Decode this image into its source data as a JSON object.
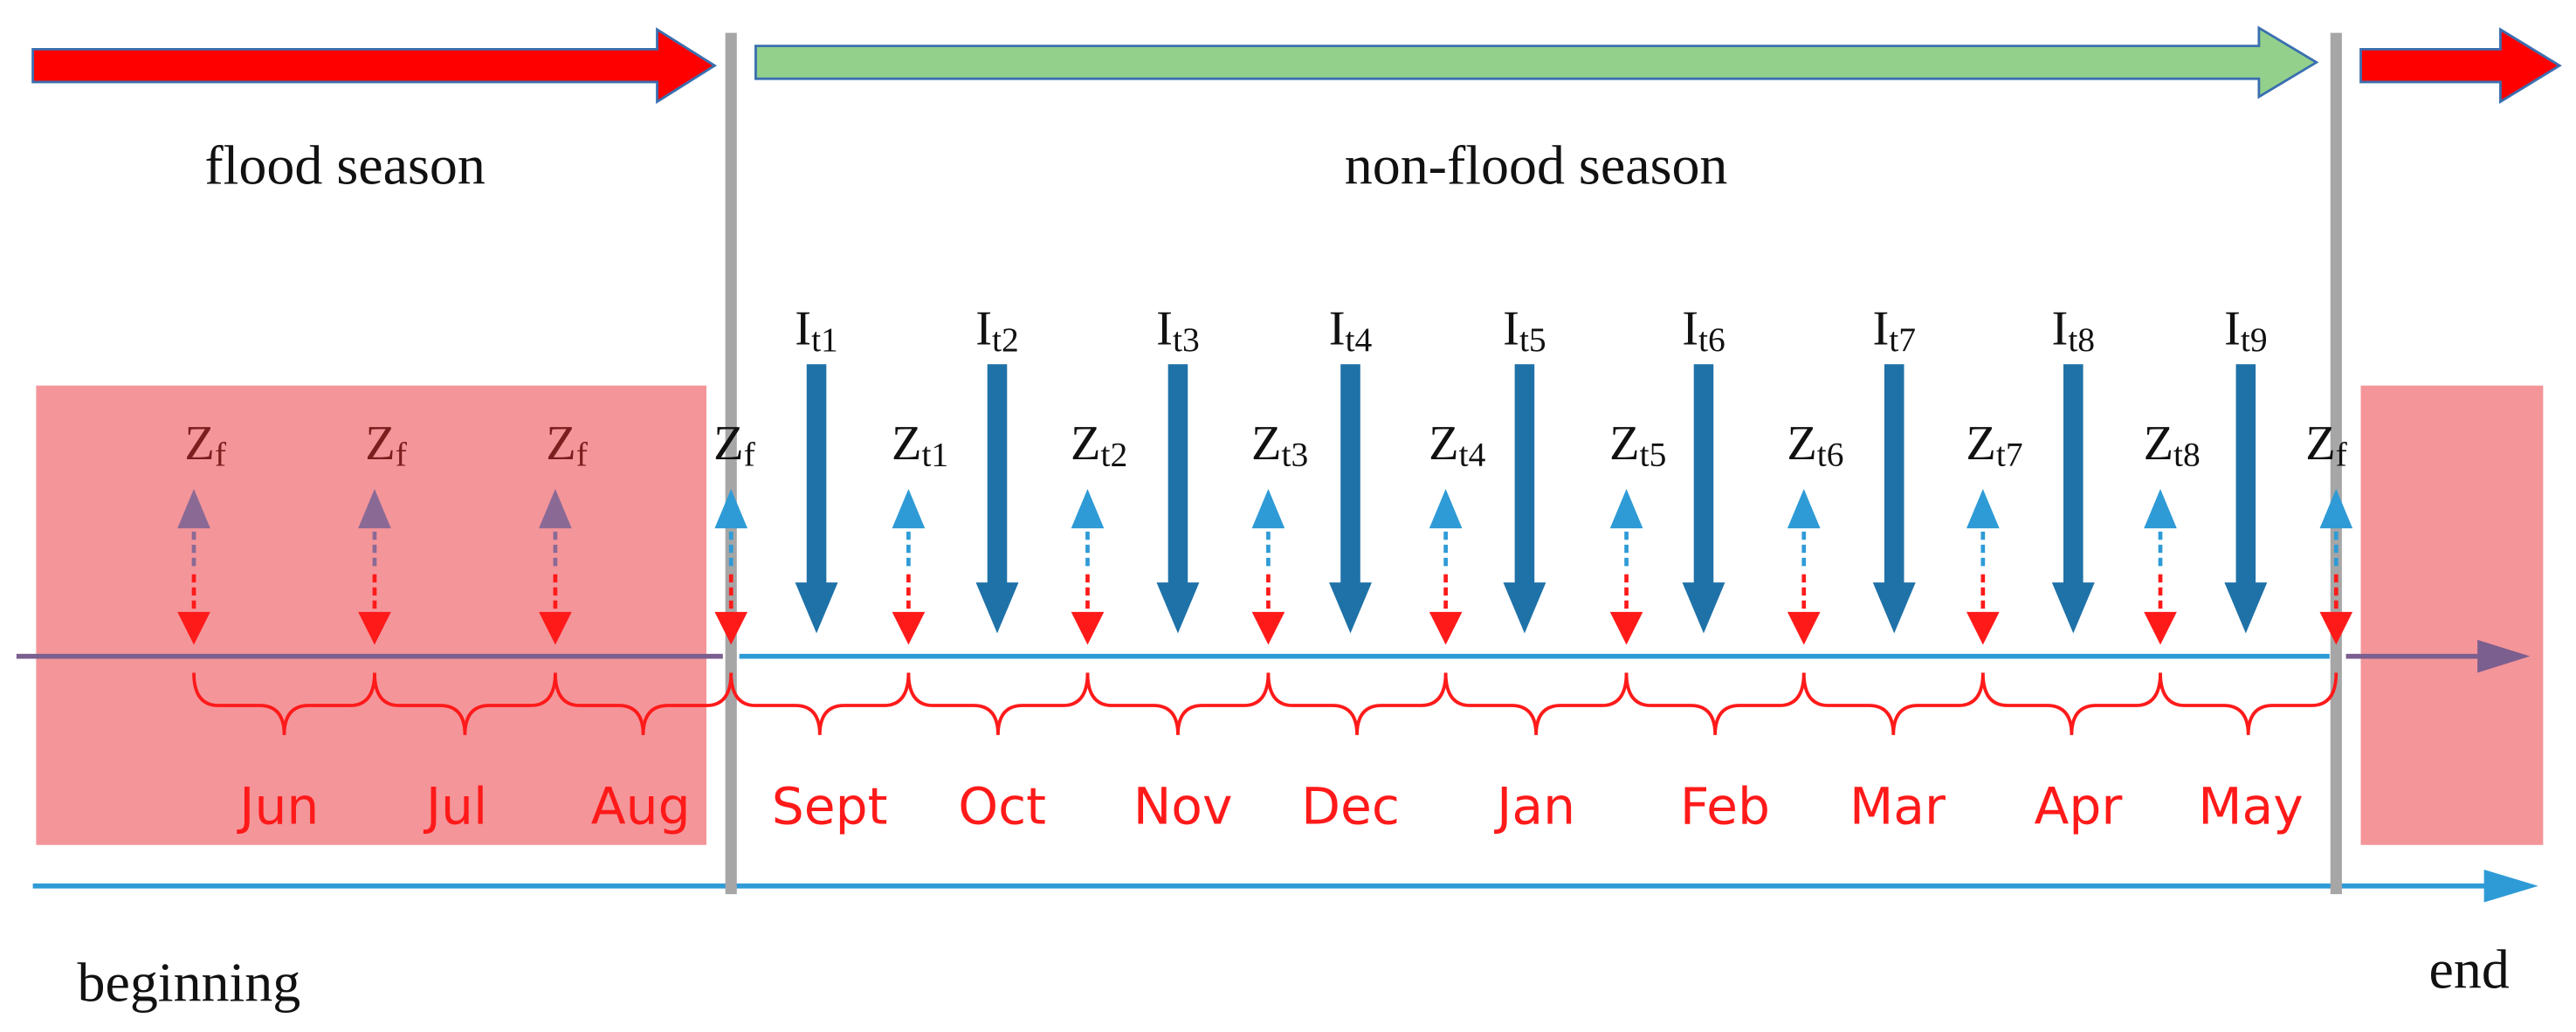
{
  "header": {
    "flood_label": "flood season",
    "non_flood_label": "non-flood season"
  },
  "timeline": {
    "start_label": "beginning",
    "end_label": "end"
  },
  "months": [
    "Jun",
    "Jul",
    "Aug",
    "Sept",
    "Oct",
    "Nov",
    "Dec",
    "Jan",
    "Feb",
    "Mar",
    "Apr",
    "May"
  ],
  "water_levels": [
    {
      "base": "Z",
      "sub": "f"
    },
    {
      "base": "Z",
      "sub": "f"
    },
    {
      "base": "Z",
      "sub": "f"
    },
    {
      "base": "Z",
      "sub": "f"
    },
    {
      "base": "Z",
      "sub": "t1"
    },
    {
      "base": "Z",
      "sub": "t2"
    },
    {
      "base": "Z",
      "sub": "t3"
    },
    {
      "base": "Z",
      "sub": "t4"
    },
    {
      "base": "Z",
      "sub": "t5"
    },
    {
      "base": "Z",
      "sub": "t6"
    },
    {
      "base": "Z",
      "sub": "t7"
    },
    {
      "base": "Z",
      "sub": "t8"
    },
    {
      "base": "Z",
      "sub": "f"
    }
  ],
  "inflows": [
    {
      "base": "I",
      "sub": "t1"
    },
    {
      "base": "I",
      "sub": "t2"
    },
    {
      "base": "I",
      "sub": "t3"
    },
    {
      "base": "I",
      "sub": "t4"
    },
    {
      "base": "I",
      "sub": "t5"
    },
    {
      "base": "I",
      "sub": "t6"
    },
    {
      "base": "I",
      "sub": "t7"
    },
    {
      "base": "I",
      "sub": "t8"
    },
    {
      "base": "I",
      "sub": "t9"
    }
  ]
}
